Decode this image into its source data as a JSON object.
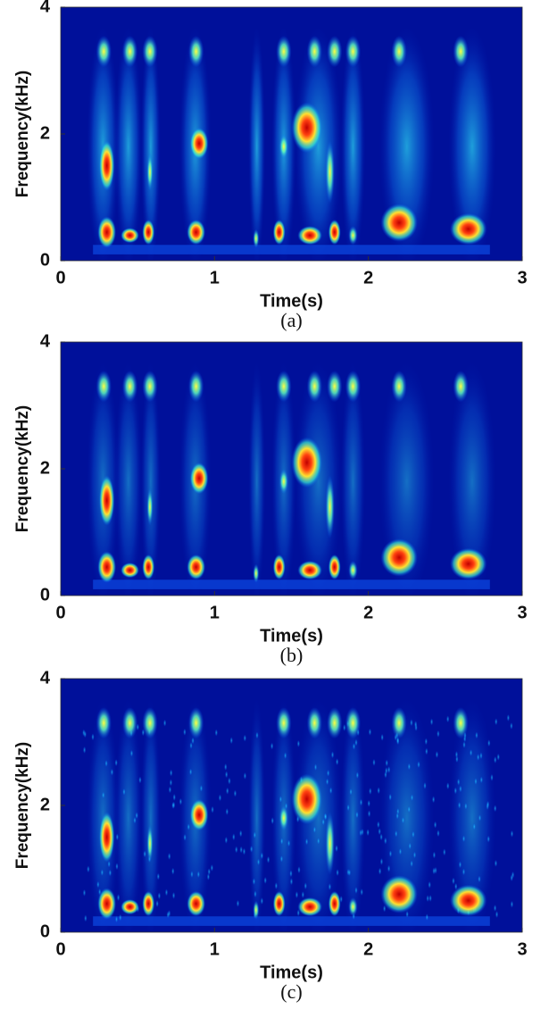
{
  "chart_data": [
    {
      "type": "spectrogram",
      "xlabel": "Time(s)",
      "ylabel": "Frequency(kHz)",
      "caption": "(a)",
      "xlim": [
        0,
        3
      ],
      "ylim": [
        0,
        4
      ],
      "xticks": [
        0,
        1,
        2,
        3
      ],
      "yticks": [
        0,
        2,
        4
      ]
    },
    {
      "type": "spectrogram",
      "xlabel": "Time(s)",
      "ylabel": "Frequency(kHz)",
      "caption": "(b)",
      "xlim": [
        0,
        3
      ],
      "ylim": [
        0,
        4
      ],
      "xticks": [
        0,
        1,
        2,
        3
      ],
      "yticks": [
        0,
        2,
        4
      ]
    },
    {
      "type": "spectrogram",
      "xlabel": "Time(s)",
      "ylabel": "Frequency(kHz)",
      "caption": "(c)",
      "xlim": [
        0,
        3
      ],
      "ylim": [
        0,
        4
      ],
      "xticks": [
        0,
        1,
        2,
        3
      ],
      "yticks": [
        0,
        2,
        4
      ]
    }
  ]
}
